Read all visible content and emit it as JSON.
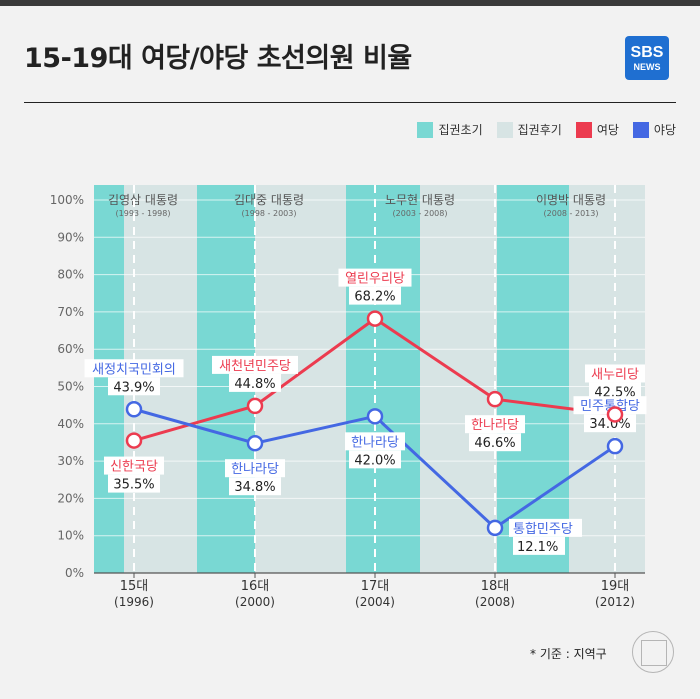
{
  "header": {
    "title": "15-19대 여당/야당 초선의원 비율",
    "logo_top": "SBS",
    "logo_bottom": "NEWS"
  },
  "legend": [
    {
      "label": "집권초기",
      "color": "#79d8d3"
    },
    {
      "label": "집권후기",
      "color": "#d7e4e4"
    },
    {
      "label": "여당",
      "color": "#ec3b4f"
    },
    {
      "label": "야당",
      "color": "#4468e3"
    }
  ],
  "chart_data": {
    "type": "line",
    "title": "15-19대 여당/야당 초선의원 비율",
    "categories": [
      "15대",
      "16대",
      "17대",
      "18대",
      "19대"
    ],
    "category_years": [
      "(1996)",
      "(2000)",
      "(2004)",
      "(2008)",
      "(2012)"
    ],
    "ylim": [
      0,
      100
    ],
    "yticks": [
      "0%",
      "10%",
      "20%",
      "30%",
      "40%",
      "50%",
      "60%",
      "70%",
      "80%",
      "90%",
      "100%"
    ],
    "series": [
      {
        "name": "여당",
        "color": "#ec3b4f",
        "values": [
          35.5,
          44.8,
          68.2,
          46.6,
          42.5
        ],
        "value_labels": [
          "35.5%",
          "44.8%",
          "68.2%",
          "46.6%",
          "42.5%"
        ],
        "party_labels": [
          "신한국당",
          "새천년민주당",
          "열린우리당",
          "한나라당",
          "새누리당"
        ]
      },
      {
        "name": "야당",
        "color": "#4468e3",
        "values": [
          43.9,
          34.8,
          42.0,
          12.1,
          34.0
        ],
        "value_labels": [
          "43.9%",
          "34.8%",
          "42.0%",
          "12.1%",
          "34.0%"
        ],
        "party_labels": [
          "새정치국민회의",
          "한나라당",
          "한나라당",
          "통합민주당",
          "민주통합당"
        ]
      }
    ],
    "presidencies": [
      {
        "name": "김영삼 대통령",
        "years": "(1993 - 1998)"
      },
      {
        "name": "김대중 대통령",
        "years": "(1998 - 2003)"
      },
      {
        "name": "노무현 대통령",
        "years": "(2003 - 2008)"
      },
      {
        "name": "이명박 대통령",
        "years": "(2008 - 2013)"
      }
    ]
  },
  "footnote": "* 기준 : 지역구"
}
